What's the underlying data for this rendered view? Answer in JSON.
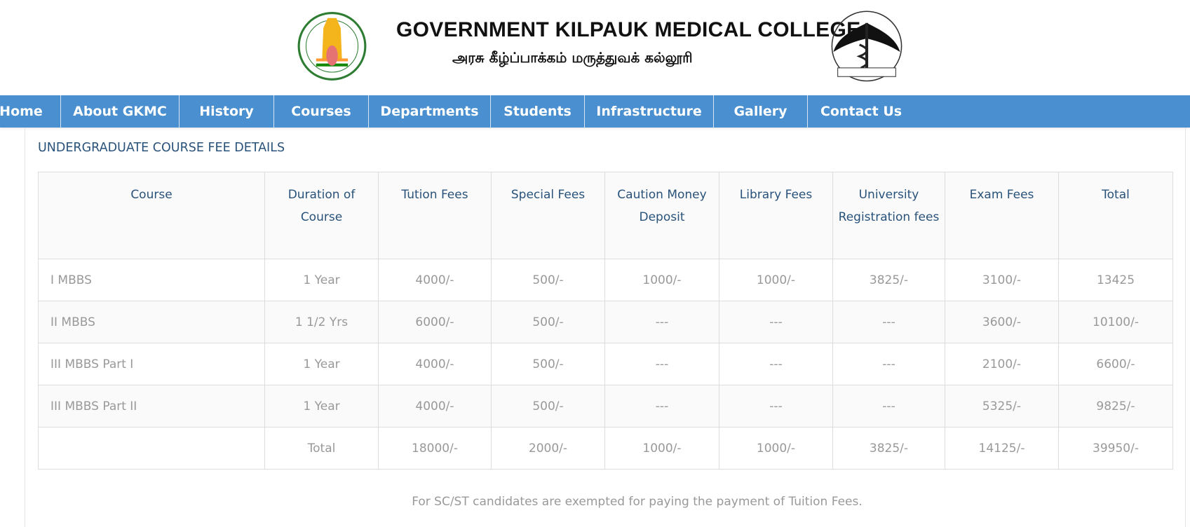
{
  "header": {
    "title": "GOVERNMENT KILPAUK MEDICAL COLLEGE",
    "subtitle": "அரசு கீழ்ப்பாக்கம் மருத்துவக் கல்லூரி",
    "left_logo": "tamil-nadu-emblem",
    "right_logo": "gkmc-caduceus-seal"
  },
  "nav": {
    "items": [
      {
        "label": "Home"
      },
      {
        "label": "About GKMC"
      },
      {
        "label": "History"
      },
      {
        "label": "Courses"
      },
      {
        "label": "Departments"
      },
      {
        "label": "Students"
      },
      {
        "label": "Infrastructure"
      },
      {
        "label": "Gallery"
      },
      {
        "label": "Contact Us"
      }
    ],
    "color": "#4a8fcf"
  },
  "section_title": "UNDERGRADUATE COURSE FEE DETAILS",
  "table": {
    "headers": [
      "Course",
      "Duration of Course",
      "Tution Fees",
      "Special Fees",
      "Caution Money Deposit",
      "Library Fees",
      "University Registration fees",
      "Exam Fees",
      "Total"
    ],
    "rows": [
      [
        "I MBBS",
        "1 Year",
        "4000/-",
        "500/-",
        "1000/-",
        "1000/-",
        "3825/-",
        "3100/-",
        "13425"
      ],
      [
        "II MBBS",
        "1 1/2 Yrs",
        "6000/-",
        "500/-",
        "---",
        "---",
        "---",
        "3600/-",
        "10100/-"
      ],
      [
        "III MBBS Part I",
        "1 Year",
        "4000/-",
        "500/-",
        "---",
        "---",
        "---",
        "2100/-",
        "6600/-"
      ],
      [
        "III MBBS Part II",
        "1 Year",
        "4000/-",
        "500/-",
        "---",
        "---",
        "---",
        "5325/-",
        "9825/-"
      ],
      [
        "",
        "Total",
        "18000/-",
        "2000/-",
        "1000/-",
        "1000/-",
        "3825/-",
        "14125/-",
        "39950/-"
      ]
    ]
  },
  "note": "For SC/ST candidates are exempted for paying the payment of Tuition Fees."
}
